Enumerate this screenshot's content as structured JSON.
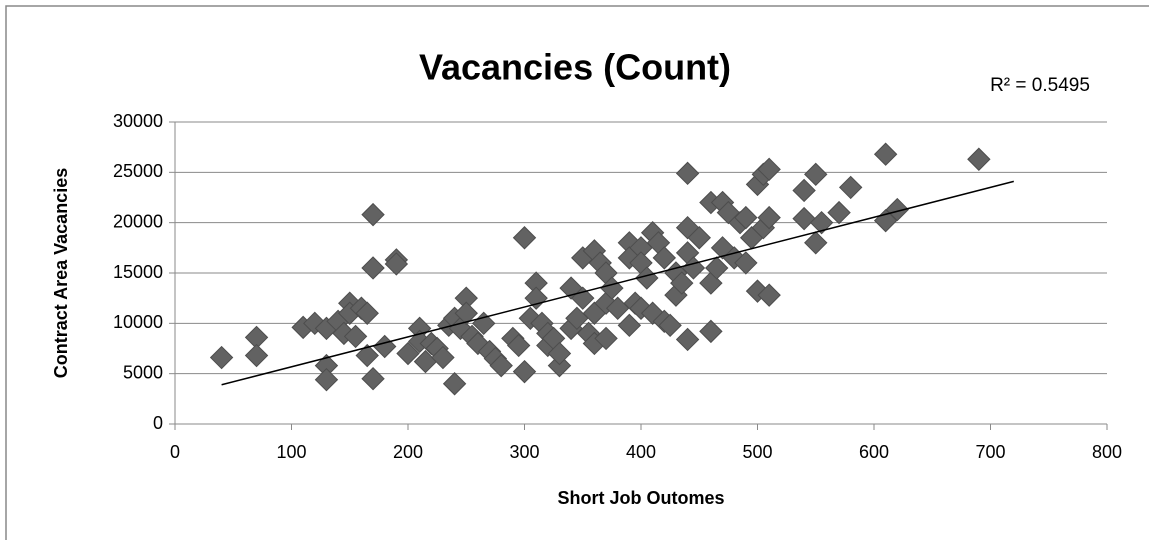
{
  "chart_data": {
    "type": "scatter",
    "title": "Vacancies (Count)",
    "xlabel": "Short Job Outomes",
    "ylabel": "Contract Area Vacancies",
    "annotation": "R² = 0.5495",
    "color": "#626262",
    "xlim": [
      0,
      800
    ],
    "xticks": [
      0,
      100,
      200,
      300,
      400,
      500,
      600,
      700,
      800
    ],
    "ylim": [
      0,
      30000
    ],
    "yticks": [
      0,
      5000,
      10000,
      15000,
      20000,
      25000,
      30000
    ],
    "grid": true,
    "trendline": {
      "x": [
        40,
        720
      ],
      "y": [
        3900,
        24100
      ]
    },
    "x": [
      40,
      70,
      70,
      110,
      120,
      130,
      130,
      130,
      140,
      145,
      150,
      150,
      155,
      160,
      165,
      165,
      170,
      170,
      170,
      180,
      190,
      190,
      200,
      210,
      210,
      215,
      220,
      225,
      230,
      235,
      240,
      240,
      245,
      250,
      250,
      255,
      260,
      265,
      270,
      275,
      280,
      290,
      295,
      300,
      300,
      305,
      310,
      310,
      315,
      320,
      320,
      325,
      330,
      330,
      340,
      340,
      345,
      350,
      350,
      355,
      360,
      360,
      360,
      365,
      370,
      370,
      370,
      375,
      380,
      390,
      390,
      390,
      395,
      400,
      400,
      400,
      405,
      410,
      410,
      415,
      420,
      420,
      425,
      430,
      430,
      435,
      440,
      440,
      440,
      440,
      445,
      450,
      460,
      460,
      460,
      465,
      470,
      470,
      475,
      480,
      485,
      490,
      490,
      495,
      500,
      500,
      505,
      505,
      510,
      510,
      510,
      540,
      540,
      550,
      550,
      555,
      570,
      580,
      610,
      610,
      620,
      690
    ],
    "y": [
      6600,
      8600,
      6800,
      9600,
      10000,
      9500,
      5800,
      4400,
      10200,
      9000,
      12000,
      11000,
      8700,
      11500,
      11000,
      6800,
      20800,
      15500,
      4500,
      7700,
      16300,
      15900,
      7000,
      9500,
      8200,
      6200,
      8000,
      7500,
      6600,
      9800,
      10500,
      4000,
      9500,
      12500,
      11000,
      8700,
      8000,
      10000,
      7200,
      6500,
      5800,
      8500,
      7800,
      18500,
      5200,
      10500,
      14000,
      12500,
      10000,
      9000,
      7800,
      8500,
      5800,
      7000,
      13500,
      9500,
      10500,
      16500,
      12500,
      9000,
      17200,
      11000,
      8000,
      16000,
      15000,
      12000,
      8500,
      13500,
      11500,
      18000,
      16500,
      9800,
      12000,
      17500,
      16000,
      11500,
      14500,
      19000,
      11000,
      18000,
      16500,
      10200,
      9800,
      15000,
      12800,
      14000,
      24900,
      19500,
      17000,
      8400,
      15500,
      18500,
      22000,
      14000,
      9200,
      15500,
      22000,
      17500,
      21000,
      16500,
      20000,
      20500,
      16000,
      18500,
      23800,
      13200,
      24800,
      19500,
      25300,
      20500,
      12800,
      23200,
      20400,
      24800,
      18000,
      20000,
      21000,
      23500,
      26800,
      20200,
      21300,
      26300
    ]
  }
}
